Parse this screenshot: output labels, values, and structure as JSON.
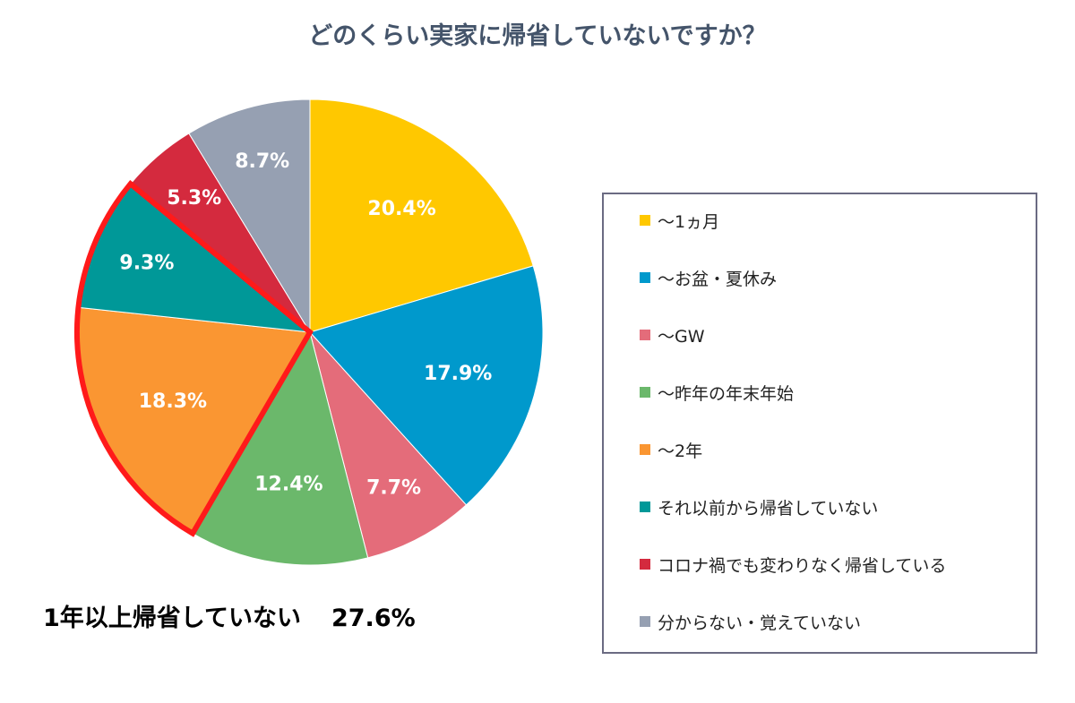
{
  "chart_data": {
    "type": "pie",
    "title": "どのくらい実家に帰省していないですか？",
    "slices": [
      {
        "label": "～1ヵ月",
        "value": 20.4,
        "display": "20.4%",
        "color": "#ffc800"
      },
      {
        "label": "～お盆・夏休み",
        "value": 17.9,
        "display": "17.9%",
        "color": "#0099cc"
      },
      {
        "label": "～GW",
        "value": 7.7,
        "display": "7.7%",
        "color": "#e46c7a"
      },
      {
        "label": "～昨年の年末年始",
        "value": 12.4,
        "display": "12.4%",
        "color": "#6bb86b"
      },
      {
        "label": "～2年",
        "value": 18.3,
        "display": "18.3%",
        "color": "#fa9632"
      },
      {
        "label": "それ以前から帰省していない",
        "value": 9.3,
        "display": "9.3%",
        "color": "#009898"
      },
      {
        "label": "コロナ禍でも変わりなく帰省している",
        "value": 5.3,
        "display": "5.3%",
        "color": "#d42a3e"
      },
      {
        "label": "分からない・覚えていない",
        "value": 8.7,
        "display": "8.7%",
        "color": "#96a0b2"
      }
    ],
    "highlight": {
      "slices": [
        4,
        5
      ],
      "outline_color": "#ff1a1a"
    },
    "legend_position": "right"
  },
  "callout": {
    "text": "1年以上帰省していない",
    "value": "27.6%"
  }
}
